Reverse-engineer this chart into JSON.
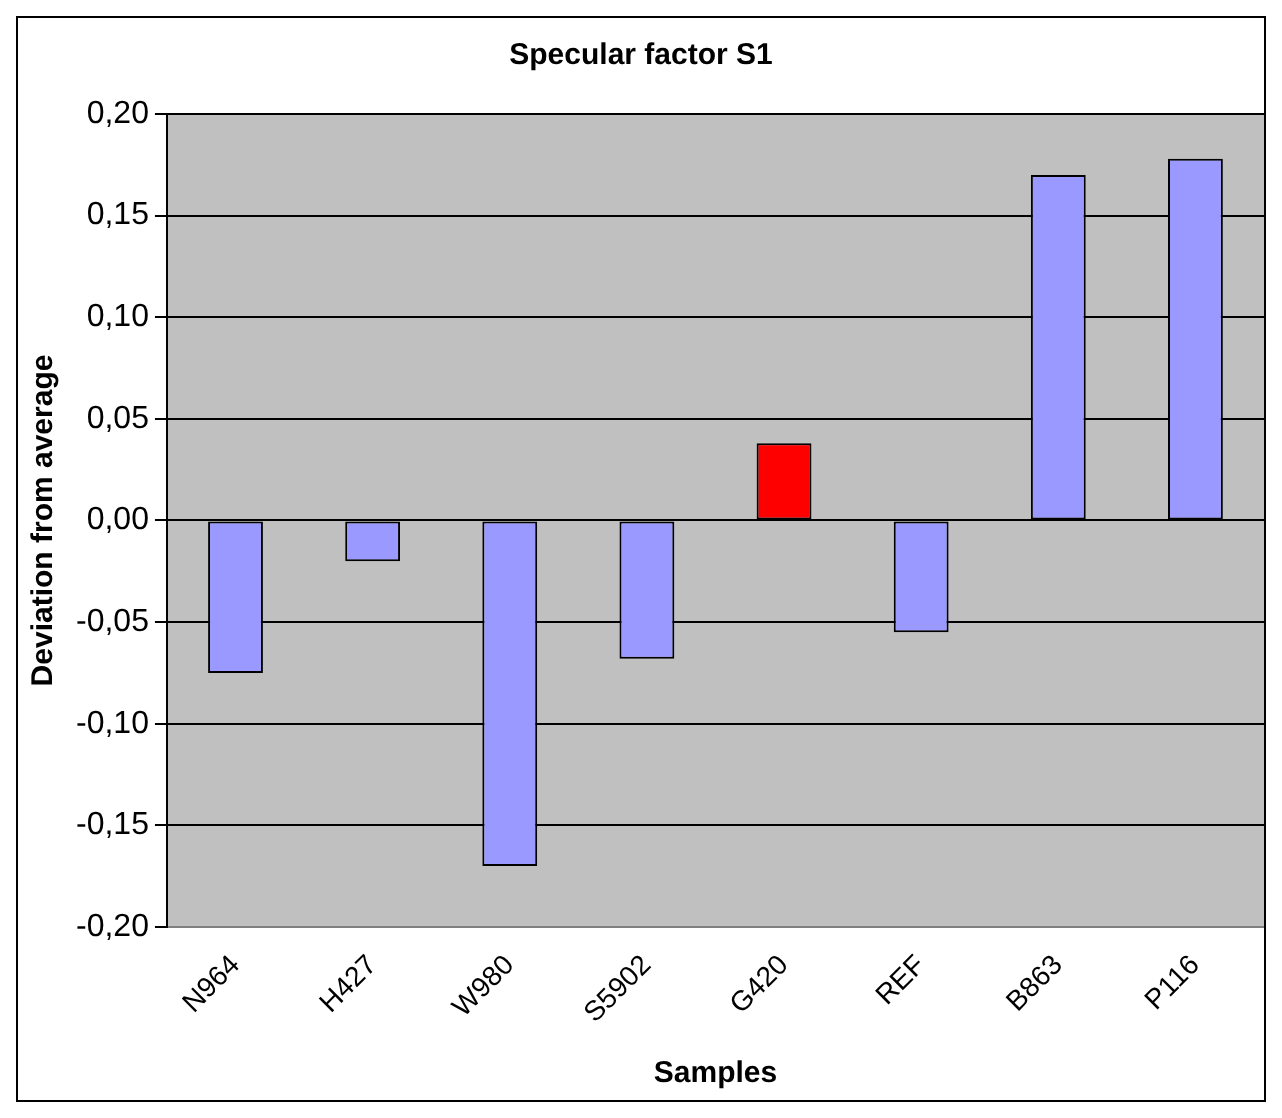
{
  "chart_data": {
    "type": "bar",
    "title": "Specular factor S1",
    "xlabel": "Samples",
    "ylabel": "Deviation from average",
    "categories": [
      "N964",
      "H427",
      "W980",
      "S5902",
      "G420",
      "REF",
      "B863",
      "P116"
    ],
    "values": [
      -0.075,
      -0.02,
      -0.17,
      -0.068,
      0.038,
      -0.055,
      0.17,
      0.178
    ],
    "colors": [
      "#9999ff",
      "#9999ff",
      "#9999ff",
      "#9999ff",
      "#ff0000",
      "#9999ff",
      "#9999ff",
      "#9999ff"
    ],
    "ylim": [
      -0.2,
      0.2
    ],
    "yticks": [
      {
        "value": -0.2,
        "label": "-0,20"
      },
      {
        "value": -0.15,
        "label": "-0,15"
      },
      {
        "value": -0.1,
        "label": "-0,10"
      },
      {
        "value": -0.05,
        "label": "-0,05"
      },
      {
        "value": 0,
        "label": "0,00"
      },
      {
        "value": 0.05,
        "label": "0,05"
      },
      {
        "value": 0.1,
        "label": "0,10"
      },
      {
        "value": 0.15,
        "label": "0,15"
      },
      {
        "value": 0.2,
        "label": "0,20"
      }
    ],
    "grid": "y",
    "legend": false
  }
}
